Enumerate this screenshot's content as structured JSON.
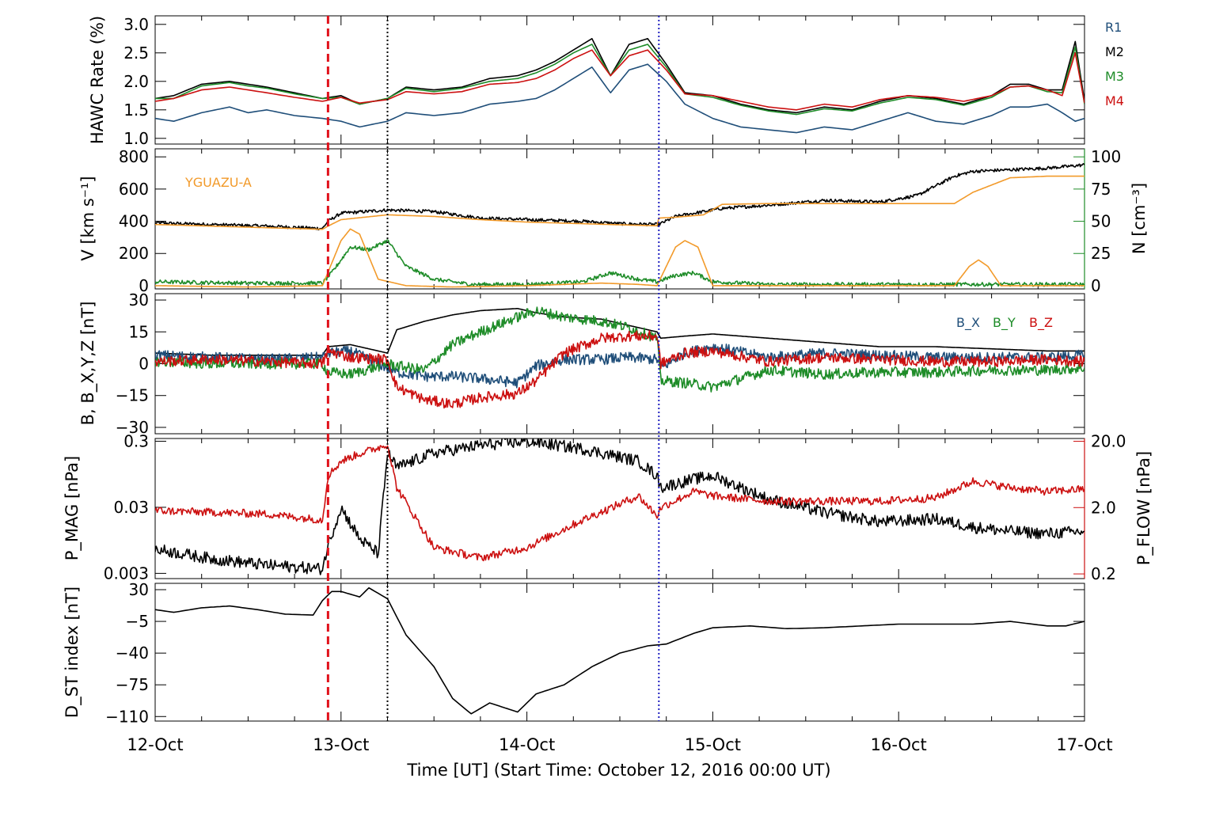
{
  "chart_data": {
    "type": "line",
    "title": "",
    "xlabel": "Time [UT] (Start Time: October 12, 2016 00:00 UT)",
    "x_ticks": [
      "12-Oct",
      "13-Oct",
      "14-Oct",
      "15-Oct",
      "16-Oct",
      "17-Oct"
    ],
    "xlim_days": [
      0,
      5
    ],
    "event_markers": {
      "red_dashed_day": 0.93,
      "black_dotted_day": 1.25,
      "blue_dotted_day": 2.71
    },
    "colors": {
      "blue": "#1f4e79",
      "black": "#000000",
      "green": "#1e8c28",
      "red": "#cc1010",
      "orange": "#f29a2a",
      "marker_red": "#e0101a",
      "marker_black": "#000000",
      "marker_blue": "#2020c0"
    },
    "panels": [
      {
        "id": "hawc",
        "ylabel": "HAWC Rate (%)",
        "ylim": [
          0.9,
          3.15
        ],
        "yticks": [
          "1.0",
          "1.5",
          "2.0",
          "2.5",
          "3.0"
        ],
        "legend": [
          "R1",
          "M2",
          "M3",
          "M4"
        ],
        "x": [
          0,
          0.1,
          0.25,
          0.4,
          0.5,
          0.6,
          0.75,
          0.9,
          1.0,
          1.1,
          1.25,
          1.35,
          1.5,
          1.65,
          1.8,
          1.95,
          2.05,
          2.15,
          2.25,
          2.35,
          2.45,
          2.55,
          2.65,
          2.75,
          2.85,
          3.0,
          3.15,
          3.3,
          3.45,
          3.6,
          3.75,
          3.9,
          4.05,
          4.2,
          4.35,
          4.5,
          4.6,
          4.7,
          4.8,
          4.88,
          4.95,
          5.0
        ],
        "series": [
          {
            "name": "R1",
            "color": "blue",
            "values": [
              1.35,
              1.3,
              1.45,
              1.55,
              1.45,
              1.5,
              1.4,
              1.35,
              1.3,
              1.2,
              1.3,
              1.45,
              1.4,
              1.45,
              1.6,
              1.65,
              1.7,
              1.85,
              2.05,
              2.25,
              1.8,
              2.2,
              2.3,
              2.0,
              1.6,
              1.35,
              1.2,
              1.15,
              1.1,
              1.2,
              1.15,
              1.3,
              1.45,
              1.3,
              1.25,
              1.4,
              1.55,
              1.55,
              1.6,
              1.45,
              1.3,
              1.35
            ]
          },
          {
            "name": "M2",
            "color": "black",
            "values": [
              1.7,
              1.75,
              1.95,
              2.0,
              1.95,
              1.9,
              1.8,
              1.7,
              1.75,
              1.6,
              1.7,
              1.9,
              1.85,
              1.9,
              2.05,
              2.1,
              2.2,
              2.35,
              2.55,
              2.75,
              2.1,
              2.65,
              2.75,
              2.3,
              1.8,
              1.75,
              1.6,
              1.5,
              1.45,
              1.55,
              1.5,
              1.65,
              1.75,
              1.7,
              1.6,
              1.75,
              1.95,
              1.95,
              1.85,
              1.85,
              2.7,
              1.65
            ]
          },
          {
            "name": "M3",
            "color": "green",
            "values": [
              1.7,
              1.7,
              1.92,
              1.98,
              1.92,
              1.88,
              1.78,
              1.7,
              1.72,
              1.6,
              1.7,
              1.88,
              1.82,
              1.88,
              2.0,
              2.05,
              2.15,
              2.3,
              2.5,
              2.65,
              2.1,
              2.55,
              2.65,
              2.25,
              1.78,
              1.72,
              1.58,
              1.48,
              1.42,
              1.52,
              1.48,
              1.62,
              1.72,
              1.68,
              1.58,
              1.72,
              1.9,
              1.92,
              1.82,
              1.8,
              2.6,
              1.6
            ]
          },
          {
            "name": "M4",
            "color": "red",
            "values": [
              1.65,
              1.7,
              1.85,
              1.9,
              1.85,
              1.8,
              1.72,
              1.65,
              1.72,
              1.62,
              1.68,
              1.82,
              1.78,
              1.82,
              1.95,
              1.98,
              2.05,
              2.2,
              2.4,
              2.55,
              2.1,
              2.45,
              2.55,
              2.2,
              1.78,
              1.75,
              1.65,
              1.55,
              1.5,
              1.6,
              1.55,
              1.68,
              1.75,
              1.72,
              1.65,
              1.75,
              1.9,
              1.92,
              1.85,
              1.75,
              2.5,
              1.62
            ]
          }
        ]
      },
      {
        "id": "solar-wind",
        "ylabel": "V [km s⁻¹]",
        "ylabel_right": "N [cm⁻³]",
        "ylim": [
          -20,
          850
        ],
        "yticks": [
          "0",
          "200",
          "400",
          "600",
          "800"
        ],
        "ylim_right": [
          -2.5,
          106.25
        ],
        "yticks_right": [
          "0",
          "25",
          "50",
          "75",
          "100"
        ],
        "station_label": "YGUAZU-A",
        "x": [
          0,
          0.3,
          0.6,
          0.9,
          0.93,
          1.0,
          1.25,
          1.5,
          1.75,
          2.0,
          2.3,
          2.5,
          2.7,
          2.71,
          2.8,
          2.95,
          3.05,
          3.3,
          3.6,
          3.9,
          4.1,
          4.2,
          4.3,
          4.4,
          4.6,
          4.8,
          5.0
        ],
        "series": [
          {
            "name": "V",
            "color": "black",
            "values": [
              390,
              380,
              370,
              355,
              400,
              450,
              470,
              460,
              420,
              410,
              400,
              385,
              380,
              380,
              430,
              460,
              480,
              500,
              530,
              520,
              560,
              620,
              680,
              710,
              720,
              730,
              750
            ]
          },
          {
            "name": "V (model)",
            "color": "orange",
            "values": [
              380,
              370,
              360,
              350,
              370,
              410,
              440,
              430,
              410,
              395,
              385,
              378,
              372,
              420,
              425,
              440,
              505,
              510,
              510,
              510,
              510,
              510,
              510,
              580,
              670,
              680,
              680
            ]
          },
          {
            "name": "N",
            "color": "green",
            "axis": "right",
            "x": [
              0,
              0.5,
              0.9,
              0.95,
              1.05,
              1.15,
              1.25,
              1.35,
              1.5,
              1.7,
              2.0,
              2.3,
              2.45,
              2.6,
              2.7,
              2.8,
              2.9,
              3.0,
              3.3,
              3.6,
              3.9,
              4.2,
              4.6,
              5.0
            ],
            "values": [
              3,
              2,
              2,
              10,
              30,
              28,
              35,
              15,
              5,
              1,
              1,
              3,
              10,
              5,
              3,
              8,
              10,
              3,
              1,
              1,
              1,
              1,
              1,
              1
            ]
          },
          {
            "name": "N (model)",
            "color": "orange",
            "axis": "right",
            "x": [
              0,
              0.5,
              0.9,
              1.0,
              1.05,
              1.1,
              1.2,
              1.35,
              1.6,
              2.0,
              2.4,
              2.6,
              2.7,
              2.8,
              2.85,
              2.92,
              3.0,
              3.3,
              3.6,
              3.9,
              4.3,
              4.38,
              4.43,
              4.48,
              4.55,
              4.7,
              5.0
            ],
            "values": [
              0,
              -1,
              0,
              35,
              44,
              40,
              5,
              0,
              -1,
              0,
              2,
              1,
              0,
              30,
              35,
              30,
              0,
              0,
              0,
              0,
              0,
              15,
              20,
              15,
              0,
              0,
              0
            ]
          }
        ]
      },
      {
        "id": "magnetic-field",
        "ylabel": "B, B_X,Y,Z [nT]",
        "ylim": [
          -33,
          33
        ],
        "yticks": [
          "−30",
          "−15",
          "0",
          "15",
          "30"
        ],
        "legend": [
          "B_X",
          "B_Y",
          "B_Z"
        ],
        "x": [
          0,
          0.3,
          0.6,
          0.9,
          0.93,
          1.05,
          1.25,
          1.3,
          1.45,
          1.6,
          1.75,
          1.95,
          2.05,
          2.2,
          2.4,
          2.55,
          2.7,
          2.72,
          2.85,
          3.0,
          3.3,
          3.6,
          3.9,
          4.2,
          4.5,
          4.8,
          5.0
        ],
        "series": [
          {
            "name": "B",
            "color": "black",
            "values": [
              5,
              4,
              4,
              4,
              8,
              9,
              5,
              16,
              20,
              23,
              25,
              26,
              24,
              22,
              21,
              18,
              15,
              12,
              13,
              14,
              12,
              10,
              8,
              8,
              7,
              6,
              6
            ]
          },
          {
            "name": "B_X",
            "color": "blue",
            "values": [
              4,
              3,
              2,
              3,
              5,
              6,
              -2,
              -4,
              -6,
              -6,
              -7,
              -9,
              -1,
              2,
              2,
              3,
              2,
              -2,
              5,
              8,
              3,
              5,
              4,
              3,
              3,
              3,
              4
            ]
          },
          {
            "name": "B_Y",
            "color": "green",
            "values": [
              1,
              0,
              0,
              0,
              -4,
              -5,
              0,
              -1,
              -3,
              9,
              15,
              22,
              25,
              22,
              20,
              17,
              12,
              -8,
              -9,
              -11,
              -3,
              -5,
              -4,
              -4,
              -3,
              -3,
              -2
            ]
          },
          {
            "name": "B_Z",
            "color": "red",
            "values": [
              1,
              2,
              1,
              0,
              6,
              3,
              2,
              -11,
              -17,
              -19,
              -16,
              -14,
              -8,
              5,
              12,
              13,
              13,
              0,
              5,
              6,
              1,
              3,
              2,
              1,
              1,
              2,
              1
            ]
          }
        ]
      },
      {
        "id": "pressure",
        "ylabel": "P_MAG [nPa]",
        "ylabel_right": "P_FLOW [nPa]",
        "scale": "log",
        "ylim": [
          0.0025,
          0.33
        ],
        "yticks": [
          "0.003",
          "0.03",
          "0.3"
        ],
        "ylim_right": [
          0.17,
          22
        ],
        "yticks_right": [
          "0.2",
          "2.0",
          "20.0"
        ],
        "x": [
          0,
          0.3,
          0.6,
          0.9,
          0.93,
          1.0,
          1.1,
          1.2,
          1.25,
          1.3,
          1.5,
          1.75,
          2.0,
          2.3,
          2.6,
          2.7,
          2.72,
          2.9,
          3.0,
          3.3,
          3.6,
          3.9,
          4.2,
          4.4,
          4.6,
          4.8,
          5.0
        ],
        "series": [
          {
            "name": "P_MAG",
            "color": "black",
            "values": [
              0.007,
              0.005,
              0.004,
              0.0035,
              0.008,
              0.03,
              0.01,
              0.006,
              0.2,
              0.12,
              0.2,
              0.26,
              0.3,
              0.23,
              0.15,
              0.09,
              0.06,
              0.08,
              0.09,
              0.04,
              0.025,
              0.018,
              0.02,
              0.015,
              0.013,
              0.012,
              0.013
            ]
          },
          {
            "name": "P_FLOW",
            "color": "red",
            "axis": "right",
            "values": [
              1.8,
              1.7,
              1.6,
              1.3,
              6,
              10,
              13,
              16,
              18,
              4,
              0.5,
              0.35,
              0.5,
              1.3,
              3,
              1.5,
              2.0,
              3.5,
              3,
              2.5,
              2.5,
              2.5,
              2.8,
              5,
              4,
              3.5,
              3.8
            ]
          }
        ]
      },
      {
        "id": "dst",
        "ylabel": "D_ST index [nT]",
        "ylim": [
          -115,
          37
        ],
        "yticks": [
          "−110",
          "−75",
          "−40",
          "−5",
          "30"
        ],
        "x": [
          0,
          0.1,
          0.25,
          0.4,
          0.55,
          0.7,
          0.85,
          0.9,
          0.95,
          1.0,
          1.1,
          1.15,
          1.25,
          1.35,
          1.5,
          1.6,
          1.7,
          1.8,
          1.95,
          2.05,
          2.2,
          2.35,
          2.5,
          2.65,
          2.75,
          2.9,
          3.0,
          3.2,
          3.4,
          3.6,
          3.8,
          4.0,
          4.2,
          4.4,
          4.6,
          4.8,
          4.9,
          5.0
        ],
        "series": [
          {
            "name": "Dst",
            "color": "black",
            "values": [
              8,
              5,
              10,
              12,
              8,
              3,
              2,
              18,
              28,
              28,
              22,
              32,
              20,
              -20,
              -55,
              -90,
              -107,
              -95,
              -105,
              -85,
              -75,
              -55,
              -40,
              -32,
              -30,
              -18,
              -12,
              -10,
              -13,
              -12,
              -10,
              -8,
              -8,
              -8,
              -5,
              -10,
              -10,
              -5
            ]
          }
        ]
      }
    ]
  }
}
